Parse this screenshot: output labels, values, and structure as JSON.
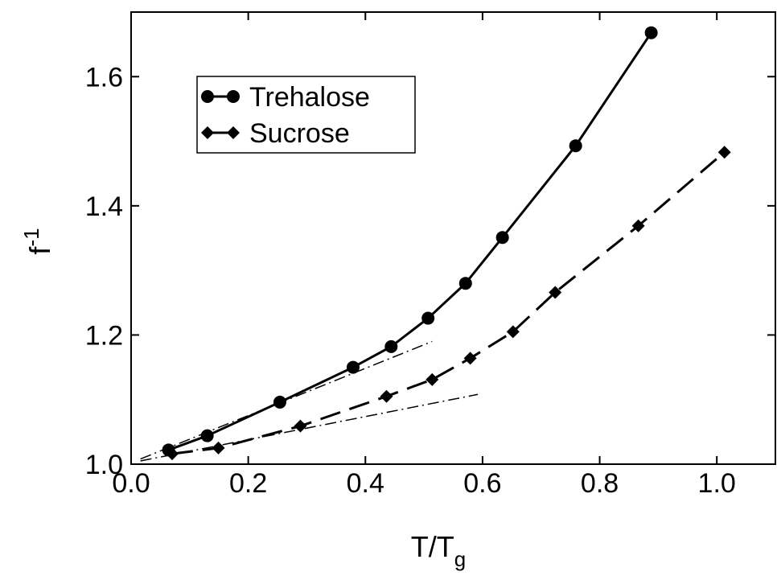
{
  "chart_data": {
    "type": "line",
    "xlabel": {
      "base": "T/T",
      "sub": "g"
    },
    "ylabel": {
      "base": "f",
      "sup": "-1"
    },
    "xlim": [
      0,
      1.1
    ],
    "ylim": [
      1.0,
      1.7
    ],
    "xticks": [
      {
        "value": 0,
        "label": "0.0"
      },
      0.2,
      0.4,
      0.6,
      0.8,
      {
        "value": 1,
        "label": "1.0"
      }
    ],
    "yticks": [
      {
        "value": 1,
        "label": "1.0"
      },
      1.2,
      1.4,
      1.6
    ],
    "legend": "upper left",
    "series": [
      {
        "name": "Trehalose",
        "color": "#000000",
        "marker": "circle",
        "dash": "solid",
        "x": [
          0.064,
          0.13,
          0.254,
          0.379,
          0.444,
          0.507,
          0.571,
          0.634,
          0.759,
          0.888
        ],
        "values": [
          1.022,
          1.044,
          1.096,
          1.15,
          1.182,
          1.226,
          1.28,
          1.351,
          1.493,
          1.668
        ]
      },
      {
        "name": "Sucrose",
        "color": "#000000",
        "marker": "diamond",
        "dash": "dashed",
        "x": [
          0.07,
          0.149,
          0.289,
          0.436,
          0.514,
          0.579,
          0.652,
          0.724,
          0.866,
          1.013
        ],
        "values": [
          1.016,
          1.025,
          1.059,
          1.105,
          1.131,
          1.164,
          1.205,
          1.266,
          1.369,
          1.483
        ]
      }
    ],
    "fits": [
      {
        "color": "#000000",
        "dash": "dashdot",
        "x": [
          0.016,
          0.514
        ],
        "values": [
          1.008,
          1.19
        ]
      },
      {
        "color": "#000000",
        "dash": "dashdot",
        "x": [
          0.016,
          0.592
        ],
        "values": [
          1.005,
          1.108
        ]
      }
    ]
  }
}
